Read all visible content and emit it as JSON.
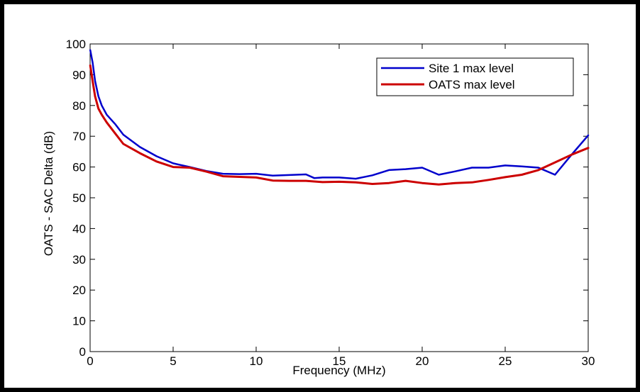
{
  "chart_data": {
    "type": "line",
    "title": "",
    "xlabel": "Frequency (MHz)",
    "ylabel": "OATS - SAC Delta (dB)",
    "xlim": [
      0,
      30
    ],
    "ylim": [
      0,
      100
    ],
    "xticks": [
      0,
      5,
      10,
      15,
      20,
      25,
      30
    ],
    "yticks": [
      0,
      10,
      20,
      30,
      40,
      50,
      60,
      70,
      80,
      90,
      100
    ],
    "grid": false,
    "legend_position": "top-right",
    "series": [
      {
        "name": "Site 1 max level",
        "color": "#0000cc",
        "x": [
          0.01,
          0.15,
          0.3,
          0.5,
          0.7,
          1.0,
          1.5,
          2,
          3,
          4,
          5,
          6,
          7,
          8,
          9,
          10,
          11,
          12,
          13,
          13.5,
          14,
          15,
          16,
          17,
          18,
          19,
          20,
          21,
          22,
          23,
          24,
          25,
          26,
          27,
          28,
          29,
          30
        ],
        "y": [
          98,
          94,
          88,
          83,
          80,
          77,
          74,
          70.5,
          66.5,
          63.5,
          61.2,
          60,
          58.7,
          57.8,
          57.7,
          57.8,
          57.2,
          57.4,
          57.6,
          56.4,
          56.6,
          56.6,
          56.2,
          57.3,
          59,
          59.3,
          59.8,
          57.5,
          58.6,
          59.8,
          59.8,
          60.5,
          60.2,
          59.8,
          57.5,
          64,
          70.3
        ]
      },
      {
        "name": "OATS max level",
        "color": "#cc0000",
        "x": [
          0.01,
          0.15,
          0.3,
          0.5,
          0.7,
          1.0,
          1.5,
          2,
          3,
          4,
          5,
          6,
          7,
          8,
          9,
          10,
          11,
          12,
          13,
          14,
          15,
          16,
          17,
          18,
          19,
          20,
          21,
          22,
          23,
          24,
          25,
          26,
          27,
          28,
          29,
          30
        ],
        "y": [
          93,
          88,
          83,
          79,
          77,
          74.5,
          71,
          67.5,
          64.5,
          61.8,
          60,
          59.8,
          58.5,
          57,
          56.8,
          56.6,
          55.6,
          55.5,
          55.5,
          55.1,
          55.2,
          55,
          54.5,
          54.8,
          55.5,
          54.8,
          54.3,
          54.8,
          55,
          55.8,
          56.7,
          57.5,
          59,
          61.5,
          64,
          66.2
        ]
      }
    ]
  }
}
